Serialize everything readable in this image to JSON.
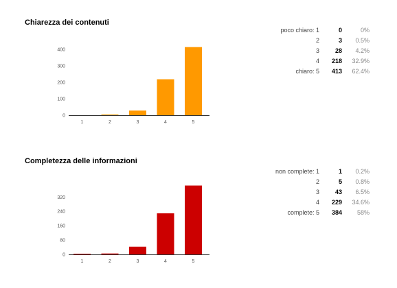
{
  "chart_data": [
    {
      "type": "bar",
      "title": "Chiarezza dei contenuti",
      "categories": [
        "1",
        "2",
        "3",
        "4",
        "5"
      ],
      "values": [
        0,
        3,
        28,
        218,
        413
      ],
      "yticks": [
        0,
        100,
        200,
        300,
        400
      ],
      "ylim": [
        0,
        420
      ],
      "color": "#ff9900",
      "legend_rows": [
        {
          "label": "poco chiaro: 1",
          "count": "0",
          "percent": "0%"
        },
        {
          "label": "2",
          "count": "3",
          "percent": "0.5%"
        },
        {
          "label": "3",
          "count": "28",
          "percent": "4.2%"
        },
        {
          "label": "4",
          "count": "218",
          "percent": "32.9%"
        },
        {
          "label": "chiaro: 5",
          "count": "413",
          "percent": "62.4%"
        }
      ]
    },
    {
      "type": "bar",
      "title": "Completezza delle informazioni",
      "categories": [
        "1",
        "2",
        "3",
        "4",
        "5"
      ],
      "values": [
        1,
        5,
        43,
        229,
        384
      ],
      "yticks": [
        0,
        80,
        160,
        240,
        320
      ],
      "ylim": [
        0,
        390
      ],
      "color": "#cc0000",
      "legend_rows": [
        {
          "label": "non complete: 1",
          "count": "1",
          "percent": "0.2%"
        },
        {
          "label": "2",
          "count": "5",
          "percent": "0.8%"
        },
        {
          "label": "3",
          "count": "43",
          "percent": "6.5%"
        },
        {
          "label": "4",
          "count": "229",
          "percent": "34.6%"
        },
        {
          "label": "complete: 5",
          "count": "384",
          "percent": "58%"
        }
      ]
    }
  ]
}
